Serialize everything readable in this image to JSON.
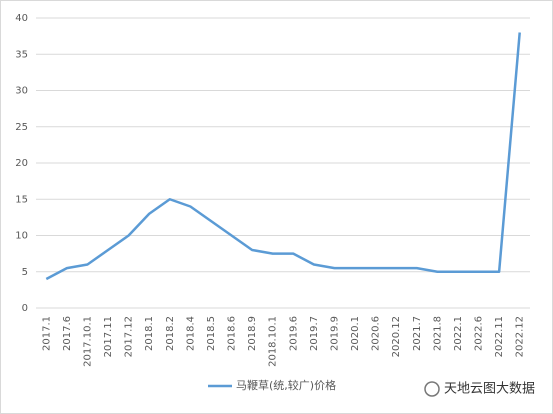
{
  "chart_data": {
    "type": "line",
    "categories": [
      "2017.1",
      "2017.6",
      "2017.10.1",
      "2017.11",
      "2017.12",
      "2018.1",
      "2018.2",
      "2018.4",
      "2018.5",
      "2018.6",
      "2018.9",
      "2018.10.1",
      "2019.6",
      "2019.7",
      "2019.9",
      "2020.1",
      "2020.6",
      "2020.12",
      "2021.7",
      "2021.8",
      "2022.1",
      "2022.6",
      "2022.11",
      "2022.12"
    ],
    "series": [
      {
        "name": "马鞭草(统,较广)价格",
        "color": "#5b9bd5",
        "values": [
          4,
          5.5,
          6,
          8,
          10,
          13,
          15,
          14,
          12,
          10,
          8,
          7.5,
          7.5,
          6,
          5.5,
          5.5,
          5.5,
          5.5,
          5.5,
          5,
          5,
          5,
          5,
          38
        ]
      }
    ],
    "ylim": [
      0,
      40
    ],
    "yticks": [
      0,
      5,
      10,
      15,
      20,
      25,
      30,
      35,
      40
    ],
    "grid": true,
    "legend": "bottom",
    "watermark": "天地云图大数据"
  }
}
